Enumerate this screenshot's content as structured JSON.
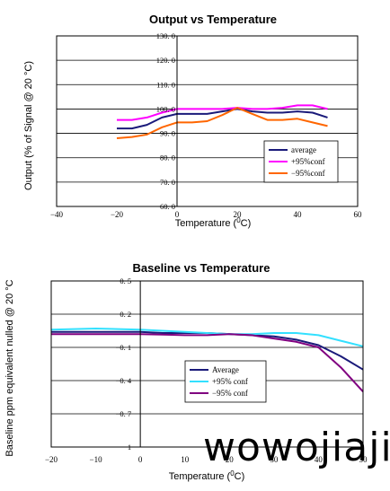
{
  "chart_data": [
    {
      "type": "line",
      "title": "Output vs Temperature",
      "xlabel": "Temperature (",
      "xlabel_sup": "0",
      "xlabel_end": "C)",
      "ylabel": "Output (% of Signal @ 20 °C)",
      "xlim": [
        -40,
        60
      ],
      "ylim": [
        60,
        130
      ],
      "x_ticks": [
        -40,
        -20,
        0,
        20,
        40,
        60
      ],
      "y_ticks": [
        60,
        70,
        80,
        90,
        100,
        110,
        120,
        130
      ],
      "x_tick_labels": [
        "−40",
        "−20",
        "0",
        "20",
        "40",
        "60"
      ],
      "y_tick_labels": [
        "60. 0",
        "70. 0",
        "80. 0",
        "90. 0",
        "100. 0",
        "110. 0",
        "120. 0",
        "130. 0"
      ],
      "grid": "horizontal",
      "legend_position": "lower-right",
      "series": [
        {
          "name": "average",
          "color": "#1a1a7a",
          "x": [
            -20,
            -15,
            -10,
            -5,
            0,
            5,
            10,
            15,
            20,
            25,
            30,
            35,
            40,
            45,
            50
          ],
          "y": [
            92,
            92,
            93.5,
            96.5,
            98,
            98,
            98,
            99,
            100,
            99,
            98.5,
            98.5,
            99,
            98.5,
            96.5
          ]
        },
        {
          "name": "+95%conf",
          "color": "#ff00ff",
          "x": [
            -20,
            -15,
            -10,
            -5,
            0,
            5,
            10,
            15,
            20,
            25,
            30,
            35,
            40,
            45,
            50
          ],
          "y": [
            95.5,
            95.5,
            96.5,
            98.5,
            100,
            100,
            100,
            100,
            100.5,
            100,
            100,
            100.5,
            101.5,
            101.5,
            100
          ]
        },
        {
          "name": "−95%conf",
          "color": "#ff6600",
          "x": [
            -20,
            -15,
            -10,
            -5,
            0,
            5,
            10,
            15,
            20,
            25,
            30,
            35,
            40,
            45,
            50
          ],
          "y": [
            88,
            88.5,
            89.5,
            92.5,
            94.5,
            94.5,
            95,
            97.5,
            100.5,
            98,
            95.5,
            95.5,
            96,
            94.5,
            93
          ]
        }
      ]
    },
    {
      "type": "line",
      "title": "Baseline vs Temperature",
      "xlabel": "Temperature (",
      "xlabel_sup": "0",
      "xlabel_end": "C)",
      "ylabel": "Baseline ppm equivalent nulled @ 20 °C",
      "xlim": [
        -20,
        50
      ],
      "ylim": [
        -1,
        0.5
      ],
      "x_ticks": [
        -20,
        -10,
        0,
        10,
        20,
        30,
        40,
        50
      ],
      "y_ticks": [
        -1,
        -0.7,
        -0.4,
        -0.1,
        0.2,
        0.5
      ],
      "x_tick_labels": [
        "−20",
        "−10",
        "0",
        "10",
        "20",
        "30",
        "40",
        "50"
      ],
      "y_tick_labels": [
        "−1",
        "−0. 7",
        "−0. 4",
        "−0. 1",
        "0. 2",
        "0. 5"
      ],
      "grid": "horizontal",
      "legend_position": "center-right",
      "series": [
        {
          "name": "Average",
          "color": "#1a1a7a",
          "x": [
            -20,
            -15,
            -10,
            -5,
            0,
            5,
            10,
            15,
            20,
            25,
            30,
            35,
            40,
            45,
            50
          ],
          "y": [
            0.04,
            0.04,
            0.04,
            0.04,
            0.04,
            0.03,
            0.03,
            0.03,
            0.02,
            0.01,
            0,
            -0.03,
            -0.08,
            -0.18,
            -0.3
          ]
        },
        {
          "name": "+95% conf",
          "color": "#33e0ff",
          "x": [
            -20,
            -15,
            -10,
            -5,
            0,
            5,
            10,
            15,
            20,
            25,
            30,
            35,
            40,
            45,
            50
          ],
          "y": [
            0.06,
            0.065,
            0.07,
            0.065,
            0.06,
            0.05,
            0.04,
            0.03,
            0.02,
            0.02,
            0.03,
            0.03,
            0.01,
            -0.04,
            -0.09
          ]
        },
        {
          "name": "−95% conf",
          "color": "#800080",
          "x": [
            -20,
            -15,
            -10,
            -5,
            0,
            5,
            10,
            15,
            20,
            25,
            30,
            35,
            40,
            45,
            50
          ],
          "y": [
            0.02,
            0.02,
            0.02,
            0.02,
            0.02,
            0.015,
            0.01,
            0.01,
            0.02,
            0.01,
            -0.02,
            -0.05,
            -0.1,
            -0.28,
            -0.5
          ]
        }
      ]
    }
  ],
  "watermark": {
    "text": "wowojiaji"
  }
}
